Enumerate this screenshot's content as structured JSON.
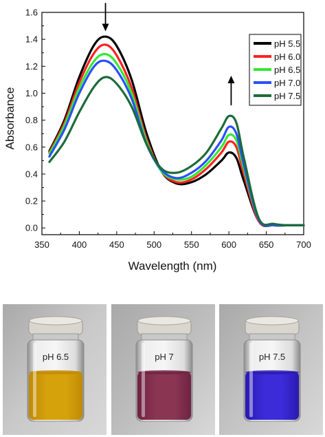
{
  "chart_data": {
    "type": "line",
    "xlabel": "Wavelength (nm)",
    "ylabel": "Absorbance",
    "xlim": [
      350,
      700
    ],
    "ylim": [
      -0.05,
      1.6
    ],
    "xticks": [
      "350",
      "400",
      "450",
      "500",
      "550",
      "600",
      "650",
      "700"
    ],
    "yticks": [
      "0.0",
      "0.2",
      "0.4",
      "0.6",
      "0.8",
      "1.0",
      "1.2",
      "1.4",
      "1.6"
    ],
    "grid": false,
    "legend_position": "top-right",
    "x": [
      360,
      380,
      400,
      420,
      435,
      450,
      470,
      490,
      510,
      530,
      550,
      570,
      590,
      600,
      610,
      620,
      640,
      660,
      680,
      700
    ],
    "series": [
      {
        "name": "pH 5.5",
        "color": "#000000",
        "values": [
          0.57,
          0.8,
          1.12,
          1.36,
          1.42,
          1.35,
          1.1,
          0.7,
          0.42,
          0.33,
          0.34,
          0.4,
          0.5,
          0.56,
          0.52,
          0.35,
          0.05,
          0.02,
          0.02,
          0.02
        ]
      },
      {
        "name": "pH 6.0",
        "color": "#ff2020",
        "values": [
          0.56,
          0.78,
          1.08,
          1.3,
          1.36,
          1.28,
          1.04,
          0.66,
          0.42,
          0.34,
          0.36,
          0.44,
          0.56,
          0.64,
          0.6,
          0.4,
          0.05,
          0.02,
          0.02,
          0.02
        ]
      },
      {
        "name": "pH 6.5",
        "color": "#33e833",
        "values": [
          0.55,
          0.76,
          1.04,
          1.24,
          1.29,
          1.22,
          1.0,
          0.64,
          0.42,
          0.36,
          0.38,
          0.47,
          0.6,
          0.69,
          0.65,
          0.44,
          0.06,
          0.02,
          0.02,
          0.02
        ]
      },
      {
        "name": "pH 7.0",
        "color": "#2b4fff",
        "values": [
          0.53,
          0.73,
          1.0,
          1.2,
          1.24,
          1.17,
          0.96,
          0.62,
          0.43,
          0.37,
          0.41,
          0.5,
          0.65,
          0.75,
          0.7,
          0.47,
          0.06,
          0.02,
          0.02,
          0.02
        ]
      },
      {
        "name": "pH 7.5",
        "color": "#1c6b3a",
        "values": [
          0.49,
          0.64,
          0.86,
          1.05,
          1.12,
          1.07,
          0.9,
          0.62,
          0.44,
          0.41,
          0.46,
          0.56,
          0.74,
          0.83,
          0.78,
          0.52,
          0.07,
          0.03,
          0.02,
          0.02
        ]
      }
    ],
    "annotations": [
      {
        "type": "arrow",
        "direction": "down",
        "x": 435,
        "y_from": 1.67,
        "y_to": 1.47
      },
      {
        "type": "arrow",
        "direction": "up",
        "x": 603,
        "y_from": 0.91,
        "y_to": 1.12
      }
    ]
  },
  "photos": [
    {
      "label": "pH 6.5",
      "liquid_color": "#d6a20c",
      "liquid_top": "#c08a05",
      "background": "#c9c9c9"
    },
    {
      "label": "pH 7",
      "liquid_color": "#8a3653",
      "liquid_top": "#6e2340",
      "background": "#bdbdbd"
    },
    {
      "label": "pH 7.5",
      "liquid_color": "#3b2bd8",
      "liquid_top": "#2a1ab0",
      "background": "#c3c3c3"
    }
  ]
}
